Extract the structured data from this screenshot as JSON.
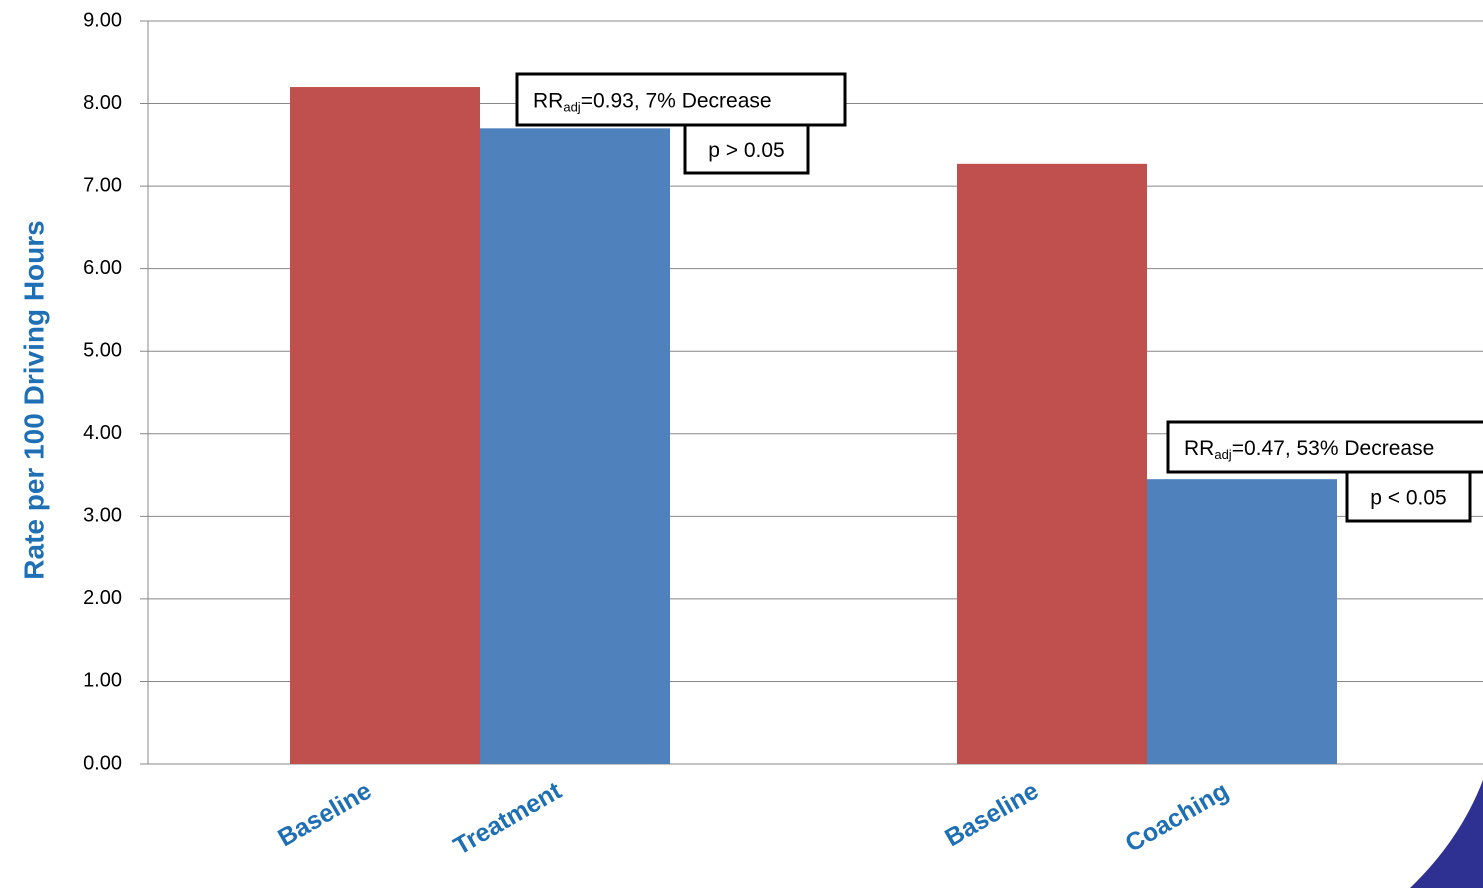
{
  "chart_data": {
    "type": "bar",
    "y_label": "Rate per 100 Driving Hours",
    "categories": [
      "Baseline",
      "Treatment",
      "Baseline",
      "Coaching"
    ],
    "values": [
      8.2,
      7.7,
      7.27,
      3.45
    ],
    "colors": [
      "#c0504d",
      "#4f81bd",
      "#c0504d",
      "#4f81bd"
    ],
    "ylim": [
      0,
      9
    ],
    "yticks": [
      {
        "value": 0,
        "label": "0.00"
      },
      {
        "value": 1,
        "label": "1.00"
      },
      {
        "value": 2,
        "label": "2.00"
      },
      {
        "value": 3,
        "label": "3.00"
      },
      {
        "value": 4,
        "label": "4.00"
      },
      {
        "value": 5,
        "label": "5.00"
      },
      {
        "value": 6,
        "label": "6.00"
      },
      {
        "value": 7,
        "label": "7.00"
      },
      {
        "value": 8,
        "label": "8.00"
      },
      {
        "value": 9,
        "label": "9.00"
      }
    ],
    "grid": true,
    "annotations": [
      {
        "base": "RR",
        "sub": "adj",
        "rest": "=0.93, 7% Decrease"
      },
      {
        "text": "p > 0.05"
      },
      {
        "base": "RR",
        "sub": "adj",
        "rest": "=0.47, 53% Decrease"
      },
      {
        "text": "p < 0.05"
      }
    ]
  }
}
